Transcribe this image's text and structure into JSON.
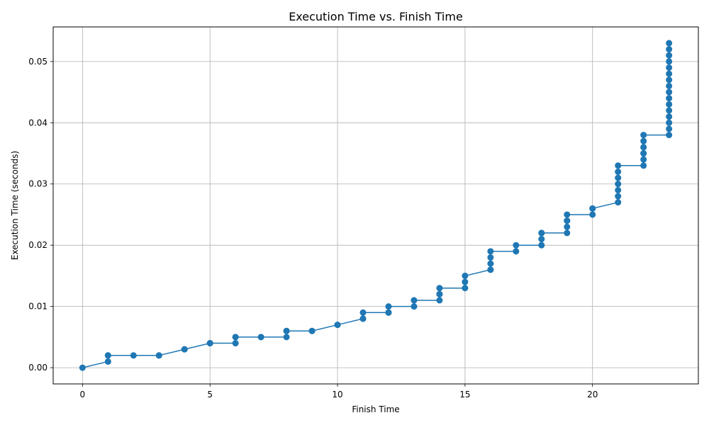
{
  "chart_data": {
    "type": "line",
    "title": "Execution Time vs. Finish Time",
    "xlabel": "Finish Time",
    "ylabel": "Execution Time (seconds)",
    "xlim": [
      -1.15,
      24.15
    ],
    "ylim": [
      -0.00265,
      0.05565
    ],
    "xticks": [
      0,
      5,
      10,
      15,
      20
    ],
    "xtick_labels": [
      "0",
      "5",
      "10",
      "15",
      "20"
    ],
    "yticks": [
      0.0,
      0.01,
      0.02,
      0.03,
      0.04,
      0.05
    ],
    "ytick_labels": [
      "0.00",
      "0.01",
      "0.02",
      "0.03",
      "0.04",
      "0.05"
    ],
    "grid": true,
    "line_color": "#1f77b4",
    "marker": "circle",
    "series": [
      {
        "x": [
          0,
          1,
          1,
          1,
          2,
          3,
          3,
          4,
          4,
          5,
          5,
          6,
          6,
          6,
          7,
          7,
          8,
          8,
          8,
          9,
          9,
          10,
          10,
          11,
          11,
          11,
          12,
          12,
          12,
          13,
          13,
          13,
          14,
          14,
          14,
          14,
          15,
          15,
          15,
          16,
          16,
          16,
          16,
          16,
          17,
          17,
          18,
          18,
          18,
          18,
          19,
          19,
          19,
          19,
          19,
          20,
          20,
          20,
          21,
          21,
          21,
          21,
          21,
          21,
          21,
          22,
          22,
          22,
          22,
          22,
          22,
          22,
          22,
          23,
          23,
          23,
          23,
          23,
          23,
          23,
          23,
          23,
          23,
          23,
          23,
          23,
          23,
          23,
          23
        ],
        "y": [
          0.0,
          0.001,
          0.002,
          0.002,
          0.002,
          0.002,
          0.002,
          0.003,
          0.003,
          0.004,
          0.004,
          0.004,
          0.005,
          0.005,
          0.005,
          0.005,
          0.005,
          0.006,
          0.006,
          0.006,
          0.006,
          0.007,
          0.007,
          0.008,
          0.008,
          0.009,
          0.009,
          0.009,
          0.01,
          0.01,
          0.011,
          0.011,
          0.011,
          0.012,
          0.012,
          0.013,
          0.013,
          0.014,
          0.015,
          0.016,
          0.016,
          0.017,
          0.018,
          0.019,
          0.019,
          0.02,
          0.02,
          0.021,
          0.022,
          0.022,
          0.022,
          0.023,
          0.024,
          0.024,
          0.025,
          0.025,
          0.026,
          0.026,
          0.027,
          0.028,
          0.029,
          0.03,
          0.031,
          0.032,
          0.033,
          0.033,
          0.034,
          0.035,
          0.035,
          0.036,
          0.036,
          0.037,
          0.038,
          0.038,
          0.039,
          0.04,
          0.041,
          0.042,
          0.043,
          0.044,
          0.045,
          0.046,
          0.047,
          0.048,
          0.049,
          0.05,
          0.051,
          0.052,
          0.053
        ]
      }
    ]
  }
}
